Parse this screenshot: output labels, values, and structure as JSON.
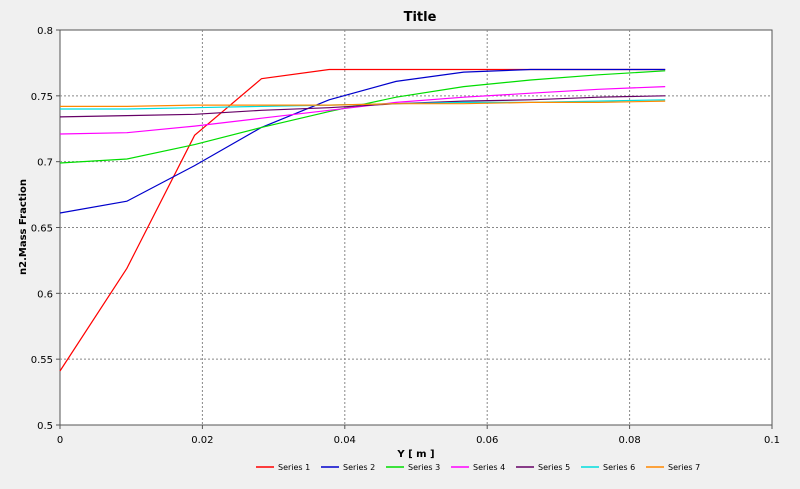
{
  "chart_data": {
    "type": "line",
    "title": "Title",
    "xlabel": "Y [ m ]",
    "ylabel": "n2.Mass Fraction",
    "xlim": [
      0,
      0.1
    ],
    "ylim": [
      0.5,
      0.8
    ],
    "xticks": [
      0,
      0.02,
      0.04,
      0.06,
      0.08,
      0.1
    ],
    "xtick_labels": [
      "0",
      "0.02",
      "0.04",
      "0.06",
      "0.08",
      "0.1"
    ],
    "yticks": [
      0.5,
      0.55,
      0.6,
      0.65,
      0.7,
      0.75,
      0.8
    ],
    "ytick_labels": [
      "0.5",
      "0.55",
      "0.6",
      "0.65",
      "0.7",
      "0.75",
      "0.8"
    ],
    "grid": true,
    "legend_position": "bottom",
    "series": [
      {
        "name": "Series 1",
        "color": "#ff0000",
        "x": [
          0,
          0.0094,
          0.0189,
          0.0283,
          0.0378,
          0.0472,
          0.0567,
          0.0661,
          0.0756,
          0.085
        ],
        "y": [
          0.541,
          0.619,
          0.72,
          0.763,
          0.77,
          0.77,
          0.77,
          0.77,
          0.77,
          0.77
        ]
      },
      {
        "name": "Series 2",
        "color": "#0000cc",
        "x": [
          0,
          0.0094,
          0.0189,
          0.0283,
          0.0378,
          0.0472,
          0.0567,
          0.0661,
          0.0756,
          0.085
        ],
        "y": [
          0.661,
          0.67,
          0.697,
          0.726,
          0.747,
          0.761,
          0.768,
          0.77,
          0.77,
          0.77
        ]
      },
      {
        "name": "Series 3",
        "color": "#00dd00",
        "x": [
          0,
          0.0094,
          0.0189,
          0.0283,
          0.0378,
          0.0472,
          0.0567,
          0.0661,
          0.0756,
          0.085
        ],
        "y": [
          0.699,
          0.702,
          0.713,
          0.726,
          0.738,
          0.749,
          0.757,
          0.762,
          0.766,
          0.769
        ]
      },
      {
        "name": "Series 4",
        "color": "#ff00ff",
        "x": [
          0,
          0.0094,
          0.0189,
          0.0283,
          0.0378,
          0.0472,
          0.0567,
          0.0661,
          0.0756,
          0.085
        ],
        "y": [
          0.721,
          0.722,
          0.727,
          0.733,
          0.739,
          0.745,
          0.749,
          0.752,
          0.755,
          0.757
        ]
      },
      {
        "name": "Series 5",
        "color": "#660066",
        "x": [
          0,
          0.0094,
          0.0189,
          0.0283,
          0.0378,
          0.0472,
          0.0567,
          0.0661,
          0.0756,
          0.085
        ],
        "y": [
          0.734,
          0.735,
          0.736,
          0.739,
          0.741,
          0.744,
          0.746,
          0.747,
          0.749,
          0.75
        ]
      },
      {
        "name": "Series 6",
        "color": "#00dddd",
        "x": [
          0,
          0.0094,
          0.0189,
          0.0283,
          0.0378,
          0.0472,
          0.0567,
          0.0661,
          0.0756,
          0.085
        ],
        "y": [
          0.74,
          0.74,
          0.741,
          0.742,
          0.743,
          0.744,
          0.745,
          0.745,
          0.746,
          0.747
        ]
      },
      {
        "name": "Series 7",
        "color": "#ff8800",
        "x": [
          0,
          0.0094,
          0.0189,
          0.0283,
          0.0378,
          0.0472,
          0.0567,
          0.0661,
          0.0756,
          0.085
        ],
        "y": [
          0.742,
          0.742,
          0.743,
          0.743,
          0.743,
          0.744,
          0.744,
          0.745,
          0.745,
          0.746
        ]
      }
    ]
  },
  "colors": {
    "background": "#f0f0f0",
    "plot_area": "#ffffff",
    "grid": "#888888"
  }
}
